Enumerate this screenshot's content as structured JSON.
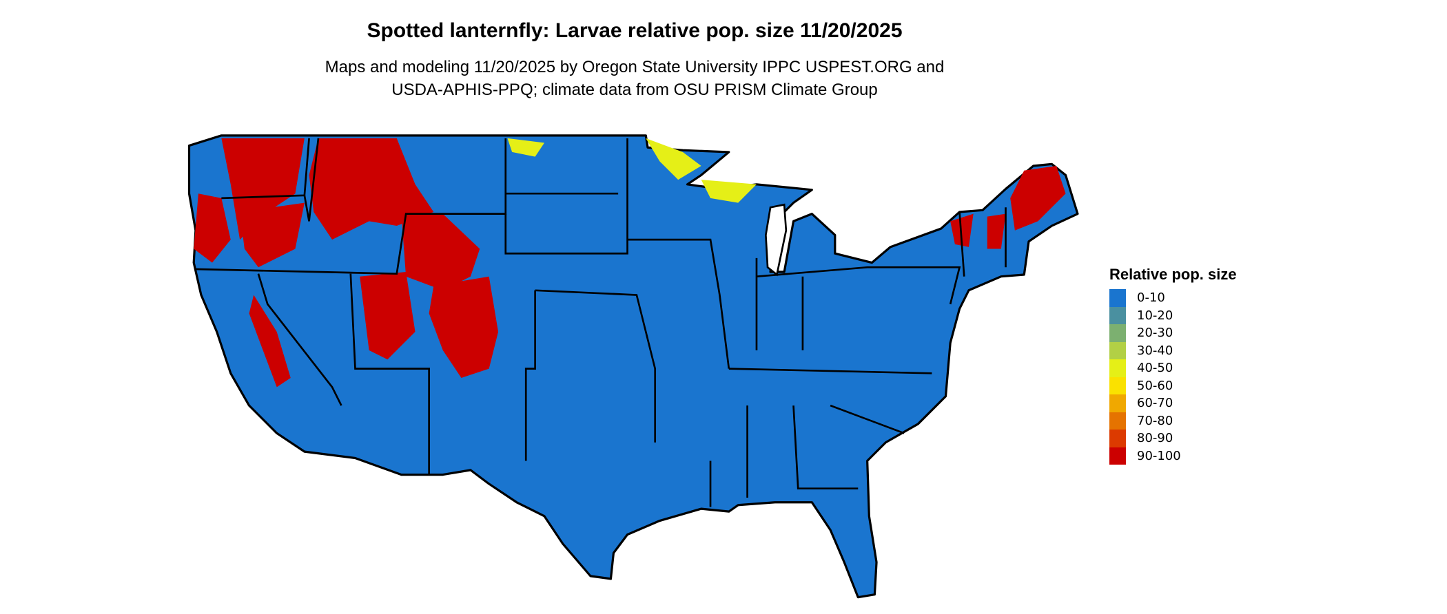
{
  "title": "Spotted lanternfly: Larvae relative pop. size 11/20/2025",
  "subtitle_lines": [
    "Maps and modeling 11/20/2025 by Oregon State University IPPC USPEST.ORG and",
    "USDA-APHIS-PPQ; climate data from OSU PRISM Climate Group"
  ],
  "map": {
    "region": "Contiguous United States",
    "state_outline_color": "#000000",
    "background_class_color": "#1a75cf",
    "high_value_color": "#cc0000"
  },
  "legend": {
    "title": "Relative pop. size",
    "placement": "right",
    "items": [
      {
        "label": "0-10",
        "color": "#1a75cf"
      },
      {
        "label": "10-20",
        "color": "#4a90a0"
      },
      {
        "label": "20-30",
        "color": "#7cb070"
      },
      {
        "label": "30-40",
        "color": "#b2d045"
      },
      {
        "label": "40-50",
        "color": "#e5ef17"
      },
      {
        "label": "50-60",
        "color": "#fae100"
      },
      {
        "label": "60-70",
        "color": "#f0a800"
      },
      {
        "label": "70-80",
        "color": "#e57300"
      },
      {
        "label": "80-90",
        "color": "#dc3a00"
      },
      {
        "label": "90-100",
        "color": "#cc0000"
      }
    ]
  }
}
